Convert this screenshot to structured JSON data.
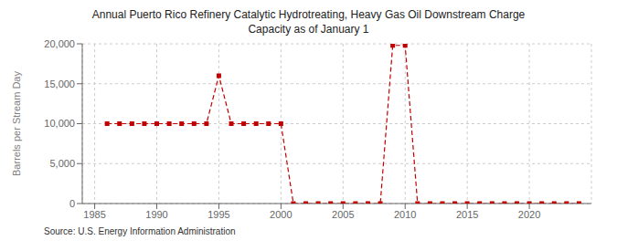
{
  "chart_data": {
    "type": "line",
    "title": "Annual Puerto Rico Refinery Catalytic Hydrotreating, Heavy Gas Oil Downstream Charge\nCapacity as of January 1",
    "ylabel": "Barrels per Stream Day",
    "annotations": [
      "Source: U.S. Energy Information Administration"
    ],
    "x": [
      1986,
      1987,
      1988,
      1989,
      1990,
      1991,
      1992,
      1993,
      1994,
      1995,
      1996,
      1997,
      1998,
      1999,
      2000,
      2001,
      2002,
      2003,
      2004,
      2005,
      2006,
      2007,
      2008,
      2009,
      2010,
      2011,
      2012,
      2013,
      2014,
      2015,
      2016,
      2017,
      2018,
      2019,
      2020,
      2021,
      2022,
      2023,
      2024
    ],
    "values": [
      10000,
      10000,
      10000,
      10000,
      10000,
      10000,
      10000,
      10000,
      10000,
      16000,
      10000,
      10000,
      10000,
      10000,
      10000,
      0,
      0,
      0,
      0,
      0,
      0,
      0,
      0,
      19800,
      19800,
      0,
      0,
      0,
      0,
      0,
      0,
      0,
      0,
      0,
      0,
      0,
      0,
      0,
      0
    ],
    "color": "#c00000",
    "line_style": "dashed",
    "marker": "square",
    "xlim": [
      1984,
      2025
    ],
    "xticks": [
      1985,
      1990,
      1995,
      2000,
      2005,
      2010,
      2015,
      2020
    ],
    "ylim": [
      0,
      20000
    ],
    "yticks": [
      0,
      {
        "value": 5000,
        "label": "5,000"
      },
      {
        "value": 10000,
        "label": "10,000"
      },
      {
        "value": 15000,
        "label": "15,000"
      },
      {
        "value": 20000,
        "label": "20,000"
      }
    ],
    "grid": true
  }
}
